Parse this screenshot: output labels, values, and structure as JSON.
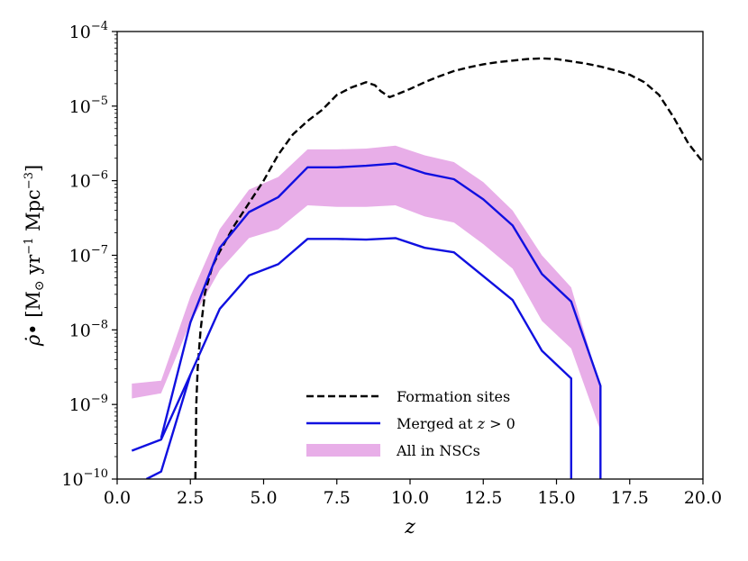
{
  "chart_data": {
    "type": "line",
    "xlabel": "z",
    "ylabel_parts": {
      "rho": "ρ̇•",
      "open": " [M",
      "sun": "⊙",
      "yr": " yr",
      "yr_exp": "−1",
      "mpc": " Mpc",
      "mpc_exp": "−3",
      "close": "]"
    },
    "xlim": [
      0,
      20
    ],
    "ylim_log10": [
      -10,
      -4
    ],
    "xticks": [
      {
        "value": 0,
        "label": "0.0"
      },
      {
        "value": 2.5,
        "label": "2.5"
      },
      {
        "value": 5,
        "label": "5.0"
      },
      {
        "value": 7.5,
        "label": "7.5"
      },
      {
        "value": 10,
        "label": "10.0"
      },
      {
        "value": 12.5,
        "label": "12.5"
      },
      {
        "value": 15,
        "label": "15.0"
      },
      {
        "value": 17.5,
        "label": "17.5"
      },
      {
        "value": 20,
        "label": "20.0"
      }
    ],
    "yticks": [
      {
        "value": -10,
        "base": "10",
        "exp": "−10"
      },
      {
        "value": -9,
        "base": "10",
        "exp": "−9"
      },
      {
        "value": -8,
        "base": "10",
        "exp": "−8"
      },
      {
        "value": -7,
        "base": "10",
        "exp": "−7"
      },
      {
        "value": -6,
        "base": "10",
        "exp": "−6"
      },
      {
        "value": -5,
        "base": "10",
        "exp": "−5"
      },
      {
        "value": -4,
        "base": "10",
        "exp": "−4"
      }
    ],
    "legend": {
      "placement": "lower-center",
      "entries": [
        {
          "label": "Formation sites",
          "style": "dashed",
          "color": "#000000"
        },
        {
          "label_parts": {
            "pre": "Merged at ",
            "var": "z",
            "post": " > 0"
          },
          "style": "solid",
          "color": "#1010e0"
        },
        {
          "label": "All in NSCs",
          "style": "band",
          "color": "#e8aee8"
        }
      ]
    },
    "series": [
      {
        "name": "Formation sites",
        "style": "dashed",
        "color": "#000000",
        "x": [
          2.67,
          2.7,
          2.75,
          2.85,
          3.0,
          3.25,
          3.5,
          4.0,
          4.5,
          5.0,
          5.5,
          6.0,
          6.5,
          7.0,
          7.5,
          8.0,
          8.5,
          8.8,
          9.0,
          9.3,
          9.5,
          10.0,
          10.5,
          11.0,
          11.5,
          12.0,
          12.5,
          13.0,
          13.5,
          14.0,
          14.5,
          15.0,
          15.5,
          16.0,
          16.5,
          17.0,
          17.5,
          18.0,
          18.5,
          19.0,
          19.5,
          20.0
        ],
        "log10_y": [
          -10.0,
          -9.0,
          -8.5,
          -8.0,
          -7.5,
          -7.15,
          -6.95,
          -6.6,
          -6.3,
          -6.0,
          -5.65,
          -5.38,
          -5.2,
          -5.05,
          -4.85,
          -4.75,
          -4.68,
          -4.72,
          -4.8,
          -4.88,
          -4.85,
          -4.77,
          -4.68,
          -4.6,
          -4.53,
          -4.48,
          -4.44,
          -4.41,
          -4.39,
          -4.37,
          -4.36,
          -4.37,
          -4.4,
          -4.43,
          -4.47,
          -4.52,
          -4.58,
          -4.68,
          -4.85,
          -5.15,
          -5.5,
          -5.75
        ]
      },
      {
        "name": "Merged at z > 0 (upper)",
        "style": "solid",
        "color": "#1010e0",
        "x": [
          1.5,
          2.5,
          3.5,
          4.5,
          5.5,
          6.5,
          7.5,
          8.5,
          9.5,
          10.5,
          11.5,
          12.5,
          13.5,
          14.5,
          15.5,
          16.5,
          16.5
        ],
        "log10_y": [
          -9.45,
          -7.9,
          -6.9,
          -6.42,
          -6.22,
          -5.82,
          -5.82,
          -5.8,
          -5.77,
          -5.9,
          -5.98,
          -6.25,
          -6.6,
          -7.25,
          -7.62,
          -8.75,
          -10.0
        ]
      },
      {
        "name": "Merged at z > 0 (lower)",
        "style": "solid",
        "color": "#1010e0",
        "x": [
          0.5,
          1.5,
          2.5,
          3.5,
          4.5,
          5.5,
          6.5,
          7.5,
          8.5,
          9.5,
          10.5,
          11.5,
          12.5,
          13.5,
          14.5,
          15.5,
          15.5
        ],
        "log10_y": [
          -9.62,
          -9.47,
          -8.6,
          -7.72,
          -7.27,
          -7.12,
          -6.78,
          -6.78,
          -6.79,
          -6.77,
          -6.9,
          -6.96,
          -7.28,
          -7.6,
          -8.28,
          -8.65,
          -10.0
        ]
      },
      {
        "name": "Merged at z > 0 (lower, low-z tail)",
        "style": "solid",
        "color": "#1010e0",
        "x": [
          1.0,
          1.5,
          2.5
        ],
        "log10_y": [
          -10.0,
          -9.9,
          -8.6
        ]
      }
    ],
    "band": {
      "name": "All in NSCs",
      "color": "#e8aee8",
      "x": [
        0.5,
        1.5,
        2.5,
        3.5,
        4.5,
        5.5,
        6.5,
        7.5,
        8.5,
        9.5,
        10.5,
        11.5,
        12.5,
        13.5,
        14.5,
        15.5,
        16.5
      ],
      "upper_log10": [
        -8.72,
        -8.68,
        -7.55,
        -6.65,
        -6.12,
        -5.95,
        -5.58,
        -5.58,
        -5.57,
        -5.53,
        -5.66,
        -5.75,
        -6.02,
        -6.4,
        -7.0,
        -7.43,
        -8.78
      ],
      "lower_log10": [
        -8.92,
        -8.85,
        -7.9,
        -7.2,
        -6.77,
        -6.65,
        -6.33,
        -6.35,
        -6.35,
        -6.33,
        -6.48,
        -6.56,
        -6.85,
        -7.18,
        -7.88,
        -8.25,
        -9.35
      ]
    }
  }
}
